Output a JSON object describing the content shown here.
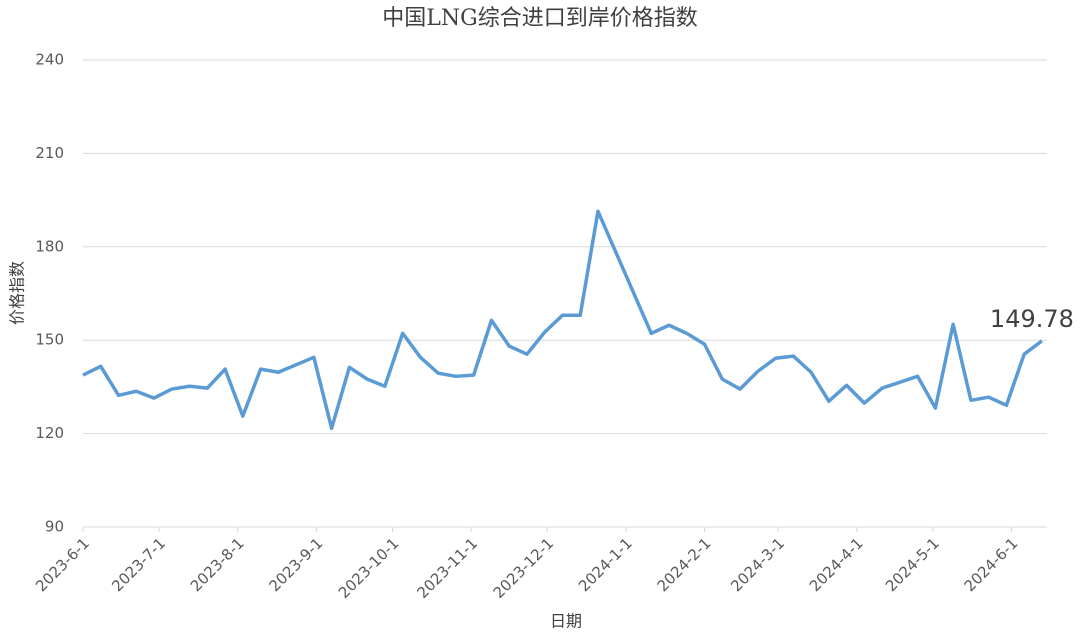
{
  "chart_data": {
    "type": "line",
    "title": "中国LNG综合进口到岸价格指数",
    "x_label": "日期",
    "y_label": "价格指数",
    "x": [
      "2023-6-1",
      "2023-6-8",
      "2023-6-15",
      "2023-6-22",
      "2023-6-29",
      "2023-7-6",
      "2023-7-13",
      "2023-7-20",
      "2023-7-27",
      "2023-8-3",
      "2023-8-10",
      "2023-8-17",
      "2023-8-31",
      "2023-9-7",
      "2023-9-14",
      "2023-9-21",
      "2023-9-28",
      "2023-10-5",
      "2023-10-12",
      "2023-10-19",
      "2023-10-26",
      "2023-11-2",
      "2023-11-9",
      "2023-11-16",
      "2023-11-23",
      "2023-11-30",
      "2023-12-7",
      "2023-12-14",
      "2023-12-21",
      "2024-1-11",
      "2024-1-18",
      "2024-1-25",
      "2024-2-1",
      "2024-2-8",
      "2024-2-15",
      "2024-2-22",
      "2024-2-29",
      "2024-3-7",
      "2024-3-14",
      "2024-3-21",
      "2024-3-28",
      "2024-4-4",
      "2024-4-11",
      "2024-4-25",
      "2024-5-2",
      "2024-5-9",
      "2024-5-16",
      "2024-5-23",
      "2024-5-30",
      "2024-6-6",
      "2024-6-13"
    ],
    "series": [
      {
        "name": "价格指数",
        "color": "#5b9bd5",
        "values": [
          138.8,
          141.6,
          132.3,
          133.6,
          131.4,
          134.3,
          135.2,
          134.6,
          140.7,
          125.6,
          140.7,
          139.7,
          144.5,
          121.7,
          141.3,
          137.5,
          135.2,
          152.2,
          144.5,
          139.4,
          138.4,
          138.8,
          156.4,
          148.1,
          145.5,
          152.6,
          158.0,
          158.0,
          191.4,
          152.2,
          154.8,
          152.2,
          148.7,
          137.5,
          134.3,
          140.0,
          144.2,
          144.9,
          139.7,
          130.4,
          135.5,
          129.8,
          134.6,
          138.4,
          128.2,
          155.1,
          130.7,
          131.7,
          129.1,
          145.5,
          149.78
        ]
      }
    ],
    "xlim": [
      "2023-6-1",
      "2024-6-15"
    ],
    "xticks": [
      "2023-6-1",
      "2023-7-1",
      "2023-8-1",
      "2023-9-1",
      "2023-10-1",
      "2023-11-1",
      "2023-12-1",
      "2024-1-1",
      "2024-2-1",
      "2024-3-1",
      "2024-4-1",
      "2024-5-1",
      "2024-6-1"
    ],
    "ylim": [
      90,
      240
    ],
    "yticks": [
      90,
      120,
      150,
      180,
      210,
      240
    ],
    "grid": true
  }
}
